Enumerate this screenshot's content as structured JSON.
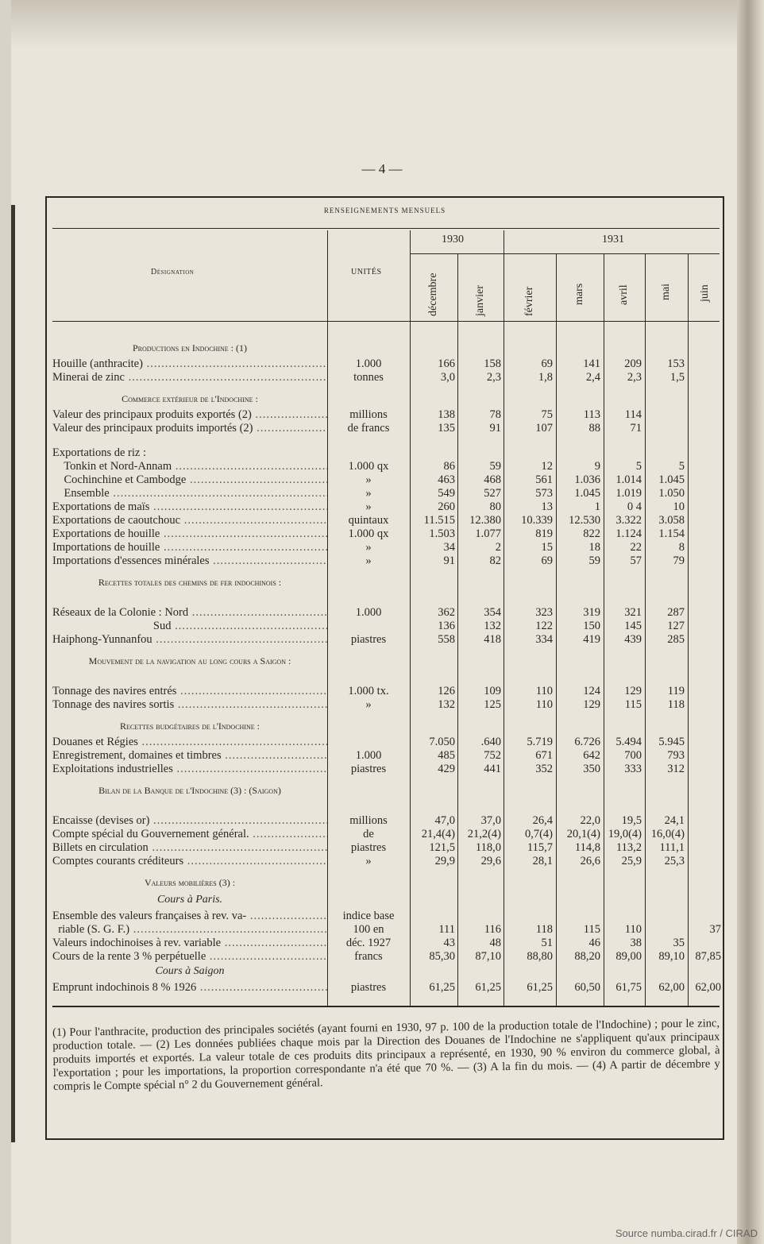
{
  "page_number": "— 4 —",
  "table_title": "RENSEIGNEMENTS MENSUELS",
  "header": {
    "designation": "Désignation",
    "units": "UNITÉS",
    "year_1930": "1930",
    "year_1931": "1931",
    "months": [
      "décembre",
      "janvier",
      "février",
      "mars",
      "avril",
      "mai",
      "juin"
    ]
  },
  "rows": [
    {
      "type": "section",
      "text": "Productions en Indochine : (1)"
    },
    {
      "type": "row",
      "label": "Houille (anthracite)",
      "unit": "1.000",
      "values": [
        "166",
        "158",
        "69",
        "141",
        "209",
        "153",
        ""
      ]
    },
    {
      "type": "row",
      "label": "Minerai de zinc",
      "unit": "tonnes",
      "values": [
        "3,0",
        "2,3",
        "1,8",
        "2,4",
        "2,3",
        "1,5",
        ""
      ]
    },
    {
      "type": "section",
      "text": "Commerce extérieur de l'Indochine :"
    },
    {
      "type": "row",
      "label": "Valeur des principaux produits exportés (2)",
      "unit": "millions",
      "values": [
        "138",
        "78",
        "75",
        "113",
        "114",
        "",
        ""
      ]
    },
    {
      "type": "row",
      "label": "Valeur des principaux produits importés (2)",
      "unit": "de francs",
      "values": [
        "135",
        "91",
        "107",
        "88",
        "71",
        "",
        ""
      ]
    },
    {
      "type": "gap"
    },
    {
      "type": "row",
      "label": "Exportations de riz :",
      "unit": "",
      "values": [
        "",
        "",
        "",
        "",
        "",
        "",
        ""
      ]
    },
    {
      "type": "row",
      "label": "    Tonkin et Nord-Annam",
      "unit": "1.000 qx",
      "values": [
        "86",
        "59",
        "12",
        "9",
        "5",
        "5",
        ""
      ]
    },
    {
      "type": "row",
      "label": "    Cochinchine et Cambodge",
      "unit": "»",
      "values": [
        "463",
        "468",
        "561",
        "1.036",
        "1.014",
        "1.045",
        ""
      ]
    },
    {
      "type": "row",
      "label": "    Ensemble",
      "unit": "»",
      "values": [
        "549",
        "527",
        "573",
        "1.045",
        "1.019",
        "1.050",
        ""
      ]
    },
    {
      "type": "row",
      "label": "Exportations de maïs",
      "unit": "»",
      "values": [
        "260",
        "80",
        "13",
        "1",
        "0 4",
        "10",
        ""
      ]
    },
    {
      "type": "row",
      "label": "Exportations de caoutchouc",
      "unit": "quintaux",
      "values": [
        "11.515",
        "12.380",
        "10.339",
        "12.530",
        "3.322",
        "3.058",
        ""
      ]
    },
    {
      "type": "row",
      "label": "Exportations de houille",
      "unit": "1.000 qx",
      "values": [
        "1.503",
        "1.077",
        "819",
        "822",
        "1.124",
        "1.154",
        ""
      ]
    },
    {
      "type": "row",
      "label": "Importations de houille",
      "unit": "»",
      "values": [
        "34",
        "2",
        "15",
        "18",
        "22",
        "8",
        ""
      ]
    },
    {
      "type": "row",
      "label": "Importations d'essences minérales",
      "unit": "»",
      "values": [
        "91",
        "82",
        "69",
        "59",
        "57",
        "79",
        ""
      ]
    },
    {
      "type": "section2",
      "text": "Recettes totales des chemins de fer indochinois :"
    },
    {
      "type": "row",
      "label": "Réseaux de la Colonie : Nord",
      "unit": "1.000",
      "values": [
        "362",
        "354",
        "323",
        "319",
        "321",
        "287",
        ""
      ]
    },
    {
      "type": "row",
      "label": "                                   Sud",
      "unit": "",
      "values": [
        "136",
        "132",
        "122",
        "150",
        "145",
        "127",
        ""
      ]
    },
    {
      "type": "row",
      "label": "Haiphong-Yunnanfou",
      "unit": "piastres",
      "values": [
        "558",
        "418",
        "334",
        "419",
        "439",
        "285",
        ""
      ]
    },
    {
      "type": "section2",
      "text": "Mouvement de la navigation au long cours a Saigon :"
    },
    {
      "type": "row",
      "label": "Tonnage des navires entrés",
      "unit": "1.000 tx.",
      "values": [
        "126",
        "109",
        "110",
        "124",
        "129",
        "119",
        ""
      ]
    },
    {
      "type": "row",
      "label": "Tonnage des navires sortis",
      "unit": "»",
      "values": [
        "132",
        "125",
        "110",
        "129",
        "115",
        "118",
        ""
      ]
    },
    {
      "type": "section",
      "text": "Recettes budgétaires de l'Indochine :"
    },
    {
      "type": "row",
      "label": "Douanes et Régies",
      "unit": "",
      "values": [
        "7.050",
        ".640",
        "5.719",
        "6.726",
        "5.494",
        "5.945",
        ""
      ]
    },
    {
      "type": "row",
      "label": "Enregistrement, domaines et timbres",
      "unit": "1.000",
      "values": [
        "485",
        "752",
        "671",
        "642",
        "700",
        "793",
        ""
      ]
    },
    {
      "type": "row",
      "label": "Exploitations industrielles",
      "unit": "piastres",
      "values": [
        "429",
        "441",
        "352",
        "350",
        "333",
        "312",
        ""
      ]
    },
    {
      "type": "section2",
      "text": "Bilan de la Banque de l'Indochine (3) : (Saigon)"
    },
    {
      "type": "row",
      "label": "Encaisse (devises or)",
      "unit": "millions",
      "values": [
        "47,0",
        "37,0",
        "26,4",
        "22,0",
        "19,5",
        "24,1",
        ""
      ]
    },
    {
      "type": "row",
      "label": "Compte spécial du Gouvernement général.",
      "unit": "de",
      "values": [
        "21,4(4)",
        "21,2(4)",
        "0,7(4)",
        "20,1(4)",
        "19,0(4)",
        "16,0(4)",
        ""
      ]
    },
    {
      "type": "row",
      "label": "Billets en circulation",
      "unit": "piastres",
      "values": [
        "121,5",
        "118,0",
        "115,7",
        "114,8",
        "113,2",
        "111,1",
        ""
      ]
    },
    {
      "type": "row",
      "label": "Comptes courants créditeurs",
      "unit": "»",
      "values": [
        "29,9",
        "29,6",
        "28,1",
        "26,6",
        "25,9",
        "25,3",
        ""
      ]
    },
    {
      "type": "section",
      "text": "Valeurs mobilières (3) :"
    },
    {
      "type": "italic",
      "text": "Cours à Paris."
    },
    {
      "type": "row",
      "label": "Ensemble des valeurs françaises à rev. va-",
      "unit": "indice base",
      "values": [
        "",
        "",
        "",
        "",
        "",
        "",
        ""
      ]
    },
    {
      "type": "row",
      "label": "  riable (S. G. F.)",
      "unit": "100 en",
      "values": [
        "111",
        "116",
        "118",
        "115",
        "110",
        "",
        "37"
      ]
    },
    {
      "type": "row",
      "label": "Valeurs indochinoises à rev. variable",
      "unit": "déc. 1927",
      "values": [
        "43",
        "48",
        "51",
        "46",
        "38",
        "35",
        ""
      ]
    },
    {
      "type": "row",
      "label": "Cours de la rente 3 % perpétuelle",
      "unit": "francs",
      "values": [
        "85,30",
        "87,10",
        "88,80",
        "88,20",
        "89,00",
        "89,10",
        "87,85"
      ]
    },
    {
      "type": "italic",
      "text": "Cours à Saigon"
    },
    {
      "type": "row",
      "label": "Emprunt indochinois 8 % 1926",
      "unit": "piastres",
      "values": [
        "61,25",
        "61,25",
        "61,25",
        "60,50",
        "61,75",
        "62,00",
        "62,00"
      ]
    }
  ],
  "footnote": "(1) Pour l'anthracite, production des principales sociétés (ayant fourni en 1930, 97 p. 100 de la production totale de l'Indochine) ; pour le zinc, production totale. — (2) Les données publiées chaque mois par la Direction des Douanes de l'Indochine ne s'appliquent qu'aux principaux produits importés et exportés. La valeur totale de ces produits dits principaux a représenté, en 1930, 90 % environ du commerce global, à l'exportation ; pour les importations, la proportion correspondante n'a été que 70 %. — (3) A la fin du mois. — (4) A partir de décembre y compris le Compte spécial n° 2 du Gouvernement général.",
  "source": "Source numba.cirad.fr / CIRAD"
}
